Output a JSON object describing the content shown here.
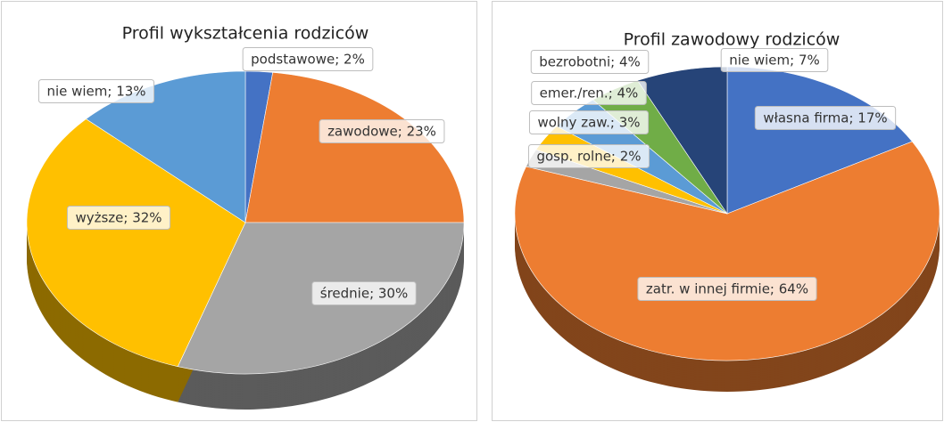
{
  "chart_data": [
    {
      "type": "pie",
      "title": "Profil wykształcenia rodziców",
      "values": [
        2,
        23,
        30,
        32,
        13
      ],
      "value_labels": [
        "podstawowe; 2%",
        "zawodowe; 23%",
        "średnie; 30%",
        "wyższe; 32%",
        "nie wiem; 13%"
      ],
      "colors": [
        "#4472c4",
        "#ed7d31",
        "#a5a5a5",
        "#ffc000",
        "#5b9bd5"
      ]
    },
    {
      "type": "pie",
      "title": "Profil zawodowy rodziców",
      "values": [
        17,
        64,
        2,
        3,
        4,
        4,
        7
      ],
      "value_labels": [
        "własna firma; 17%",
        "zatr. w innej firmie; 64%",
        "gosp. rolne; 2%",
        "wolny zaw.; 3%",
        "emer./ren.; 4%",
        "bezrobotni; 4%",
        "nie wiem; 7%"
      ],
      "colors": [
        "#4472c4",
        "#ed7d31",
        "#a5a5a5",
        "#ffc000",
        "#5b9bd5",
        "#70ad47",
        "#264478"
      ]
    }
  ]
}
